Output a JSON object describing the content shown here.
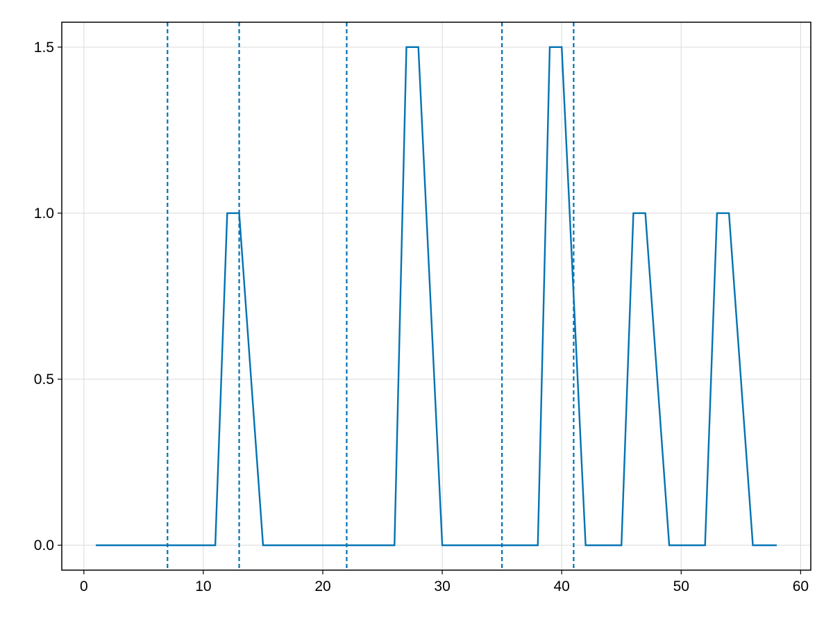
{
  "chart_data": {
    "type": "line",
    "title": "",
    "xlabel": "",
    "ylabel": "",
    "xlim": [
      -1.85,
      60.85
    ],
    "ylim": [
      -0.075,
      1.575
    ],
    "x_ticks": [
      0,
      10,
      20,
      30,
      40,
      50,
      60
    ],
    "x_tick_labels": [
      "0",
      "10",
      "20",
      "30",
      "40",
      "50",
      "60"
    ],
    "y_ticks": [
      0.0,
      0.5,
      1.0,
      1.5
    ],
    "y_tick_labels": [
      "0.0",
      "0.5",
      "1.0",
      "1.5"
    ],
    "grid": true,
    "legend": "none",
    "colors": {
      "series": "#0072b2",
      "grid": "#d9d9d9",
      "axes": "#000000"
    },
    "series": [
      {
        "style": "solid",
        "points": [
          [
            1,
            0
          ],
          [
            11,
            0
          ],
          [
            12,
            1
          ],
          [
            13,
            1
          ],
          [
            15,
            0
          ],
          [
            26,
            0
          ],
          [
            27,
            1.5
          ],
          [
            28,
            1.5
          ],
          [
            30,
            0
          ],
          [
            38,
            0
          ],
          [
            39,
            1.5
          ],
          [
            40,
            1.5
          ],
          [
            42,
            0
          ],
          [
            45,
            0
          ],
          [
            46,
            1
          ],
          [
            47,
            1
          ],
          [
            49,
            0
          ],
          [
            52,
            0
          ],
          [
            53,
            1
          ],
          [
            54,
            1
          ],
          [
            56,
            0
          ],
          [
            58,
            0
          ]
        ]
      }
    ],
    "vlines": {
      "style": "dashed",
      "x": [
        7,
        13,
        22,
        35,
        41
      ]
    }
  }
}
